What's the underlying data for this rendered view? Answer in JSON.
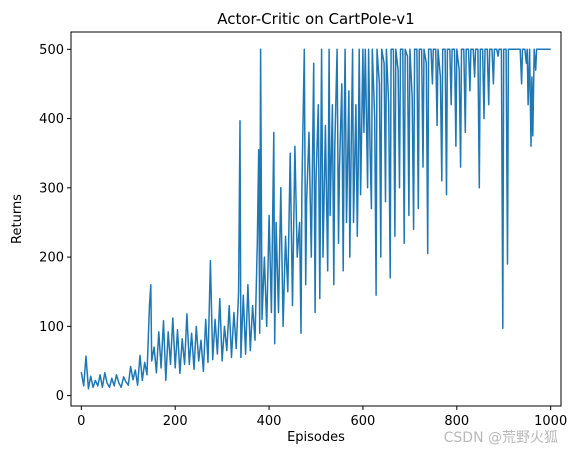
{
  "chart_data": {
    "type": "line",
    "title": "Actor-Critic on CartPole-v1",
    "xlabel": "Episodes",
    "ylabel": "Returns",
    "xlim": [
      -22,
      1022
    ],
    "ylim": [
      -15,
      525
    ],
    "xticks": [
      0,
      200,
      400,
      600,
      800,
      1000
    ],
    "yticks": [
      0,
      100,
      200,
      300,
      400,
      500
    ],
    "grid": false,
    "legend": "none",
    "line_color": "#1f77b4",
    "series": [
      {
        "values": [
          [
            0,
            34
          ],
          [
            5,
            14
          ],
          [
            10,
            57
          ],
          [
            15,
            10
          ],
          [
            20,
            28
          ],
          [
            25,
            12
          ],
          [
            30,
            22
          ],
          [
            35,
            14
          ],
          [
            40,
            30
          ],
          [
            45,
            12
          ],
          [
            50,
            33
          ],
          [
            55,
            18
          ],
          [
            60,
            12
          ],
          [
            65,
            25
          ],
          [
            70,
            14
          ],
          [
            75,
            30
          ],
          [
            80,
            18
          ],
          [
            85,
            12
          ],
          [
            90,
            27
          ],
          [
            95,
            20
          ],
          [
            100,
            15
          ],
          [
            105,
            42
          ],
          [
            110,
            23
          ],
          [
            115,
            37
          ],
          [
            120,
            15
          ],
          [
            125,
            58
          ],
          [
            130,
            22
          ],
          [
            135,
            48
          ],
          [
            140,
            30
          ],
          [
            145,
            128
          ],
          [
            148,
            160
          ],
          [
            150,
            50
          ],
          [
            155,
            70
          ],
          [
            160,
            33
          ],
          [
            165,
            92
          ],
          [
            170,
            40
          ],
          [
            175,
            108
          ],
          [
            180,
            22
          ],
          [
            185,
            92
          ],
          [
            190,
            45
          ],
          [
            195,
            112
          ],
          [
            200,
            40
          ],
          [
            205,
            95
          ],
          [
            210,
            32
          ],
          [
            215,
            82
          ],
          [
            220,
            45
          ],
          [
            225,
            118
          ],
          [
            230,
            45
          ],
          [
            235,
            90
          ],
          [
            240,
            38
          ],
          [
            245,
            100
          ],
          [
            250,
            50
          ],
          [
            255,
            80
          ],
          [
            260,
            35
          ],
          [
            265,
            110
          ],
          [
            270,
            48
          ],
          [
            275,
            195
          ],
          [
            280,
            52
          ],
          [
            285,
            110
          ],
          [
            290,
            60
          ],
          [
            295,
            140
          ],
          [
            300,
            50
          ],
          [
            305,
            100
          ],
          [
            310,
            65
          ],
          [
            315,
            130
          ],
          [
            320,
            55
          ],
          [
            325,
            120
          ],
          [
            330,
            68
          ],
          [
            335,
            150
          ],
          [
            338,
            397
          ],
          [
            340,
            55
          ],
          [
            345,
            145
          ],
          [
            350,
            60
          ],
          [
            355,
            160
          ],
          [
            360,
            65
          ],
          [
            365,
            130
          ],
          [
            370,
            80
          ],
          [
            375,
            220
          ],
          [
            378,
            355
          ],
          [
            380,
            90
          ],
          [
            382,
            500
          ],
          [
            385,
            110
          ],
          [
            390,
            200
          ],
          [
            395,
            100
          ],
          [
            400,
            260
          ],
          [
            405,
            120
          ],
          [
            410,
            380
          ],
          [
            412,
            75
          ],
          [
            415,
            250
          ],
          [
            420,
            120
          ],
          [
            425,
            300
          ],
          [
            430,
            100
          ],
          [
            435,
            230
          ],
          [
            440,
            150
          ],
          [
            445,
            350
          ],
          [
            450,
            130
          ],
          [
            455,
            360
          ],
          [
            460,
            200
          ],
          [
            465,
            250
          ],
          [
            468,
            90
          ],
          [
            470,
            300
          ],
          [
            475,
            500
          ],
          [
            478,
            160
          ],
          [
            480,
            280
          ],
          [
            485,
            380
          ],
          [
            490,
            200
          ],
          [
            495,
            480
          ],
          [
            498,
            120
          ],
          [
            500,
            310
          ],
          [
            505,
            420
          ],
          [
            508,
            140
          ],
          [
            510,
            330
          ],
          [
            512,
            500
          ],
          [
            515,
            200
          ],
          [
            520,
            390
          ],
          [
            525,
            180
          ],
          [
            528,
            500
          ],
          [
            530,
            260
          ],
          [
            535,
            420
          ],
          [
            538,
            160
          ],
          [
            540,
            360
          ],
          [
            545,
            500
          ],
          [
            548,
            220
          ],
          [
            550,
            330
          ],
          [
            555,
            450
          ],
          [
            558,
            180
          ],
          [
            560,
            390
          ],
          [
            562,
            500
          ],
          [
            565,
            250
          ],
          [
            570,
            440
          ],
          [
            572,
            200
          ],
          [
            575,
            360
          ],
          [
            578,
            500
          ],
          [
            580,
            250
          ],
          [
            585,
            420
          ],
          [
            588,
            230
          ],
          [
            590,
            330
          ],
          [
            592,
            500
          ],
          [
            595,
            290
          ],
          [
            600,
            500
          ],
          [
            602,
            380
          ],
          [
            605,
            500
          ],
          [
            610,
            300
          ],
          [
            612,
            500
          ],
          [
            615,
            360
          ],
          [
            618,
            270
          ],
          [
            620,
            500
          ],
          [
            625,
            400
          ],
          [
            628,
            145
          ],
          [
            630,
            500
          ],
          [
            635,
            450
          ],
          [
            638,
            200
          ],
          [
            640,
            500
          ],
          [
            645,
            480
          ],
          [
            648,
            280
          ],
          [
            650,
            500
          ],
          [
            655,
            420
          ],
          [
            658,
            170
          ],
          [
            660,
            500
          ],
          [
            665,
            500
          ],
          [
            668,
            230
          ],
          [
            670,
            500
          ],
          [
            675,
            470
          ],
          [
            678,
            300
          ],
          [
            680,
            500
          ],
          [
            685,
            500
          ],
          [
            688,
            220
          ],
          [
            690,
            500
          ],
          [
            695,
            490
          ],
          [
            698,
            260
          ],
          [
            700,
            500
          ],
          [
            705,
            430
          ],
          [
            708,
            240
          ],
          [
            710,
            500
          ],
          [
            715,
            500
          ],
          [
            718,
            270
          ],
          [
            720,
            500
          ],
          [
            725,
            500
          ],
          [
            728,
            330
          ],
          [
            730,
            500
          ],
          [
            735,
            480
          ],
          [
            738,
            205
          ],
          [
            740,
            500
          ],
          [
            745,
            500
          ],
          [
            748,
            450
          ],
          [
            750,
            500
          ],
          [
            755,
            500
          ],
          [
            758,
            390
          ],
          [
            760,
            500
          ],
          [
            765,
            460
          ],
          [
            768,
            310
          ],
          [
            770,
            500
          ],
          [
            775,
            500
          ],
          [
            778,
            290
          ],
          [
            780,
            500
          ],
          [
            785,
            500
          ],
          [
            788,
            420
          ],
          [
            790,
            500
          ],
          [
            795,
            500
          ],
          [
            798,
            360
          ],
          [
            800,
            500
          ],
          [
            805,
            470
          ],
          [
            808,
            330
          ],
          [
            810,
            500
          ],
          [
            815,
            500
          ],
          [
            818,
            380
          ],
          [
            820,
            500
          ],
          [
            825,
            500
          ],
          [
            828,
            440
          ],
          [
            830,
            500
          ],
          [
            835,
            500
          ],
          [
            838,
            460
          ],
          [
            840,
            500
          ],
          [
            845,
            500
          ],
          [
            848,
            300
          ],
          [
            850,
            500
          ],
          [
            855,
            500
          ],
          [
            858,
            400
          ],
          [
            860,
            500
          ],
          [
            865,
            500
          ],
          [
            868,
            420
          ],
          [
            870,
            500
          ],
          [
            875,
            500
          ],
          [
            878,
            450
          ],
          [
            880,
            500
          ],
          [
            885,
            500
          ],
          [
            888,
            490
          ],
          [
            890,
            500
          ],
          [
            895,
            500
          ],
          [
            898,
            97
          ],
          [
            900,
            500
          ],
          [
            905,
            500
          ],
          [
            908,
            190
          ],
          [
            910,
            500
          ],
          [
            915,
            500
          ],
          [
            920,
            500
          ],
          [
            925,
            500
          ],
          [
            930,
            500
          ],
          [
            935,
            500
          ],
          [
            938,
            450
          ],
          [
            940,
            500
          ],
          [
            945,
            500
          ],
          [
            948,
            480
          ],
          [
            950,
            500
          ],
          [
            952,
            420
          ],
          [
            955,
            500
          ],
          [
            958,
            360
          ],
          [
            960,
            460
          ],
          [
            962,
            375
          ],
          [
            965,
            500
          ],
          [
            968,
            470
          ],
          [
            970,
            500
          ],
          [
            975,
            500
          ],
          [
            980,
            500
          ],
          [
            985,
            500
          ],
          [
            990,
            500
          ],
          [
            995,
            500
          ],
          [
            1000,
            500
          ]
        ]
      }
    ]
  },
  "watermark": "CSDN @荒野火狐"
}
